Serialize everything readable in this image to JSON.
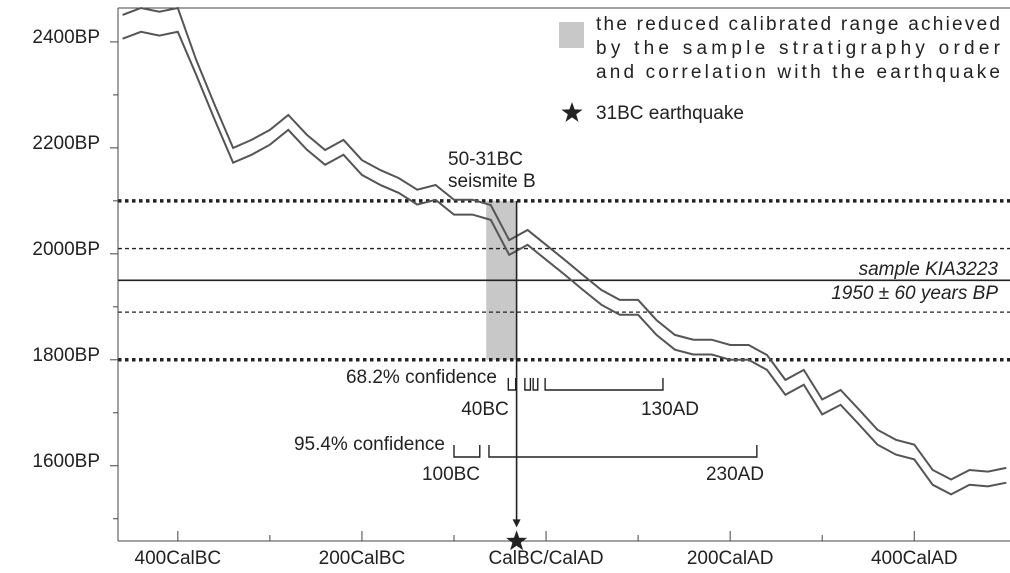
{
  "chart_data": {
    "type": "calibration",
    "xlim": [
      -465,
      504
    ],
    "ylim": [
      1458,
      2464
    ],
    "xticks": [
      {
        "value": -400,
        "label": "400CalBC"
      },
      {
        "value": -200,
        "label": "200CalBC"
      },
      {
        "value": 0,
        "label": "CalBC/CalAD"
      },
      {
        "value": 200,
        "label": "200CalAD"
      },
      {
        "value": 400,
        "label": "400CalAD"
      }
    ],
    "xminor": [
      -300,
      -100,
      100,
      300
    ],
    "yticks": [
      {
        "value": 2400,
        "label": "2400BP"
      },
      {
        "value": 2200,
        "label": "2200BP"
      },
      {
        "value": 2000,
        "label": "2000BP"
      },
      {
        "value": 1800,
        "label": "1800BP"
      },
      {
        "value": 1600,
        "label": "1600BP"
      }
    ],
    "yminor": [
      2300,
      2100,
      1900,
      1700,
      1500
    ],
    "x": [
      -460,
      -440,
      -420,
      -400,
      -380,
      -360,
      -340,
      -320,
      -300,
      -280,
      -260,
      -240,
      -220,
      -200,
      -180,
      -160,
      -140,
      -120,
      -100,
      -80,
      -60,
      -40,
      -20,
      0,
      20,
      40,
      60,
      80,
      100,
      120,
      140,
      160,
      180,
      200,
      220,
      240,
      260,
      280,
      300,
      320,
      340,
      360,
      380,
      400,
      420,
      440,
      460,
      480,
      500
    ],
    "series": [
      {
        "color": "#555555",
        "values": [
          2451,
          2464,
          2457,
          2464,
          2366,
          2281,
          2200,
          2215,
          2234,
          2262,
          2225,
          2196,
          2215,
          2177,
          2158,
          2143,
          2121,
          2130,
          2102,
          2102,
          2092,
          2026,
          2045,
          2017,
          1989,
          1960,
          1932,
          1913,
          1913,
          1875,
          1847,
          1838,
          1838,
          1828,
          1828,
          1809,
          1762,
          1781,
          1725,
          1743,
          1706,
          1668,
          1649,
          1640,
          1592,
          1574,
          1592,
          1589,
          1596
        ]
      },
      {
        "color": "#555555",
        "values": [
          2406,
          2419,
          2412,
          2419,
          2338,
          2253,
          2172,
          2187,
          2206,
          2234,
          2197,
          2168,
          2187,
          2149,
          2130,
          2115,
          2093,
          2102,
          2074,
          2074,
          2064,
          1998,
          2017,
          1989,
          1961,
          1932,
          1904,
          1885,
          1885,
          1847,
          1819,
          1810,
          1810,
          1800,
          1800,
          1781,
          1734,
          1753,
          1697,
          1715,
          1678,
          1640,
          1621,
          1612,
          1564,
          1546,
          1564,
          1561,
          1568
        ]
      }
    ],
    "hlines": [
      {
        "value": 1950,
        "style": "solid"
      },
      {
        "value": 2010,
        "style": "dashed"
      },
      {
        "value": 1890,
        "style": "dashed"
      },
      {
        "value": 2100,
        "style": "dotted"
      },
      {
        "value": 1800,
        "style": "dotted"
      }
    ],
    "band": {
      "x": [
        -65,
        -32
      ],
      "y": [
        1800,
        2100
      ],
      "color": "#c8c8c8"
    },
    "event": {
      "x": -32,
      "y": [
        2100,
        1480
      ]
    },
    "seismite": [
      "50-31BC",
      "seismite B"
    ],
    "sample": [
      "sample KIA3223",
      "1950 ± 60 years BP"
    ],
    "conf68": {
      "label": "68.2% confidence",
      "intervals": [
        [
          -41,
          -33
        ],
        [
          -23,
          -17
        ],
        [
          -14,
          -9
        ],
        [
          -1,
          127
        ]
      ],
      "start_label": "40BC",
      "end_label": "130AD"
    },
    "conf95": {
      "label": "95.4% confidence",
      "intervals": [
        [
          -100,
          -72
        ],
        [
          -62,
          229
        ]
      ],
      "start_label": "100BC",
      "end_label": "230AD"
    },
    "legend": [
      {
        "lines": [
          "the reduced calibrated range achieved",
          "by the sample stratigraphy order",
          "and correlation with the earthquake"
        ]
      },
      {
        "lines": [
          "31BC earthquake"
        ]
      }
    ]
  }
}
